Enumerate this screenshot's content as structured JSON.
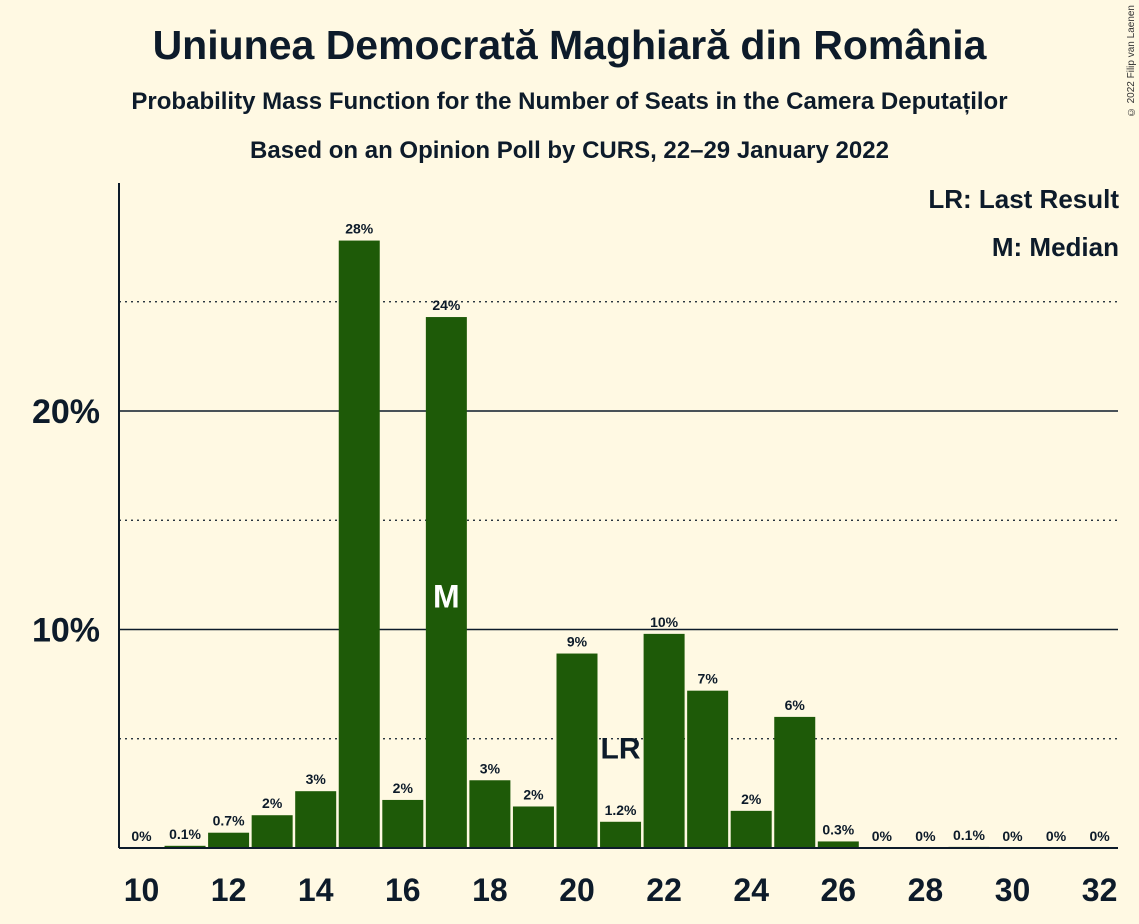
{
  "title": "Uniunea Democrată Maghiară din România",
  "subtitle": "Probability Mass Function for the Number of Seats in the Camera Deputaților",
  "subtitle2": "Based on an Opinion Poll by CURS, 22–29 January 2022",
  "copyright": "© 2022 Filip van Laenen",
  "legend": {
    "last_result": "LR: Last Result",
    "median": "M: Median"
  },
  "colors": {
    "bar": "#1E5A08",
    "background": "#FFF9E3",
    "text": "#0d1b2a"
  },
  "chart_data": {
    "type": "bar",
    "x": [
      10,
      11,
      12,
      13,
      14,
      15,
      16,
      17,
      18,
      19,
      20,
      21,
      22,
      23,
      24,
      25,
      26,
      27,
      28,
      29,
      30,
      31,
      32
    ],
    "values": [
      0,
      0.1,
      0.7,
      1.5,
      2.6,
      27.8,
      2.2,
      24.3,
      3.1,
      1.9,
      8.9,
      1.2,
      9.8,
      7.2,
      1.7,
      6.0,
      0.3,
      0,
      0,
      0.05,
      0,
      0,
      0
    ],
    "labels": [
      "0%",
      "0.1%",
      "0.7%",
      "2%",
      "3%",
      "28%",
      "2%",
      "24%",
      "3%",
      "2%",
      "9%",
      "1.2%",
      "10%",
      "7%",
      "2%",
      "6%",
      "0.3%",
      "0%",
      "0%",
      "0.1%",
      "0%",
      "0%",
      "0%"
    ],
    "x_tick_labels": [
      "10",
      "12",
      "14",
      "16",
      "18",
      "20",
      "22",
      "24",
      "26",
      "28",
      "30",
      "32"
    ],
    "y_tick_labels": [
      "10%",
      "20%"
    ],
    "ylim": [
      0,
      30
    ],
    "median_seat": 17,
    "median_marker": "M",
    "last_result_seat": 21,
    "last_result_marker": "LR"
  }
}
